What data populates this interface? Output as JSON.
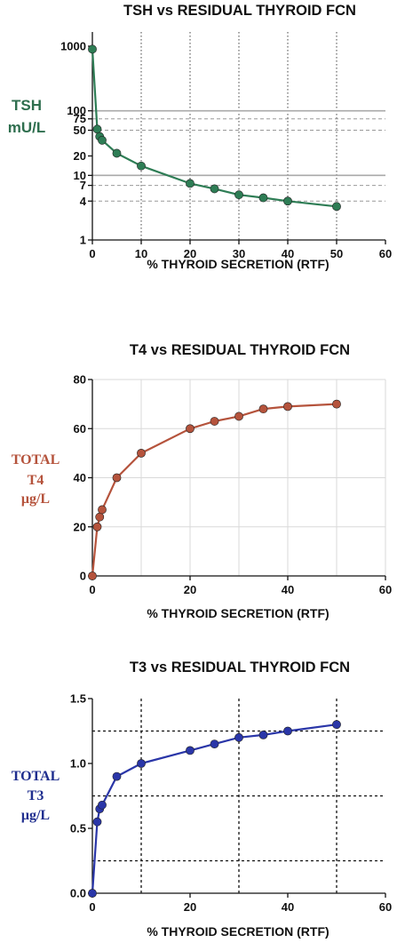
{
  "chart_data": [
    {
      "type": "line",
      "title": "TSH vs RESIDUAL THYROID FCN",
      "xlabel": "% THYROID SECRETION (RTF)",
      "ylabel_lines": [
        "TSH",
        "mU/L"
      ],
      "ylabel_color": "#2e6e4e",
      "yscale": "log",
      "xlim": [
        0,
        60
      ],
      "ylim": [
        1,
        1000
      ],
      "xticks": [
        "0",
        "10",
        "20",
        "30",
        "40",
        "50",
        "60"
      ],
      "yticks": [
        "1",
        "4",
        "7",
        "10",
        "20",
        "50",
        "75",
        "100",
        "1000"
      ],
      "grid": "solid at x=10; dashed at y=4,7,50,75; solid at y=10,100; dotted vertical at x=10..50",
      "series": [
        {
          "color": "#2e7d55",
          "x": [
            0,
            1,
            1.5,
            2,
            5,
            10,
            20,
            25,
            30,
            35,
            40,
            50
          ],
          "y": [
            900,
            52,
            40,
            35,
            22,
            14,
            7.5,
            6.2,
            5,
            4.5,
            4,
            3.3
          ]
        }
      ]
    },
    {
      "type": "line",
      "title": "T4 vs RESIDUAL THYROID FCN",
      "xlabel": "% THYROID SECRETION (RTF)",
      "ylabel_lines": [
        "TOTAL",
        "T4",
        "μg/L"
      ],
      "ylabel_color": "#b5533c",
      "yscale": "linear",
      "xlim": [
        0,
        60
      ],
      "ylim": [
        0,
        80
      ],
      "xticks": [
        "0",
        "20",
        "40",
        "60"
      ],
      "yticks": [
        "0",
        "20",
        "40",
        "60",
        "80"
      ],
      "grid": "light solid grid at x=10,20,30,40,50,60 and y=20,40,60,80",
      "series": [
        {
          "color": "#b5533c",
          "x": [
            0,
            1,
            1.5,
            2,
            5,
            10,
            20,
            25,
            30,
            35,
            40,
            50
          ],
          "y": [
            0,
            20,
            24,
            27,
            40,
            50,
            60,
            63,
            65,
            68,
            69,
            70
          ]
        }
      ]
    },
    {
      "type": "line",
      "title": "T3 vs RESIDUAL THYROID FCN",
      "xlabel": "% THYROID SECRETION (RTF)",
      "ylabel_lines": [
        "TOTAL",
        "T3",
        "μg/L"
      ],
      "ylabel_color": "#1f2e8f",
      "yscale": "linear",
      "xlim": [
        0,
        60
      ],
      "ylim": [
        0,
        1.5
      ],
      "xticks": [
        "0",
        "20",
        "40",
        "60"
      ],
      "yticks": [
        "0.0",
        "0.5",
        "1.0",
        "1.5"
      ],
      "grid": "dotted black grid at x=10,30,50 and y=0.25,0.75,1.25",
      "series": [
        {
          "color": "#2a36a8",
          "x": [
            0,
            1,
            1.5,
            2,
            5,
            10,
            20,
            25,
            30,
            35,
            40,
            50
          ],
          "y": [
            0,
            0.55,
            0.65,
            0.68,
            0.9,
            1.0,
            1.1,
            1.15,
            1.2,
            1.22,
            1.25,
            1.3
          ]
        }
      ]
    }
  ]
}
